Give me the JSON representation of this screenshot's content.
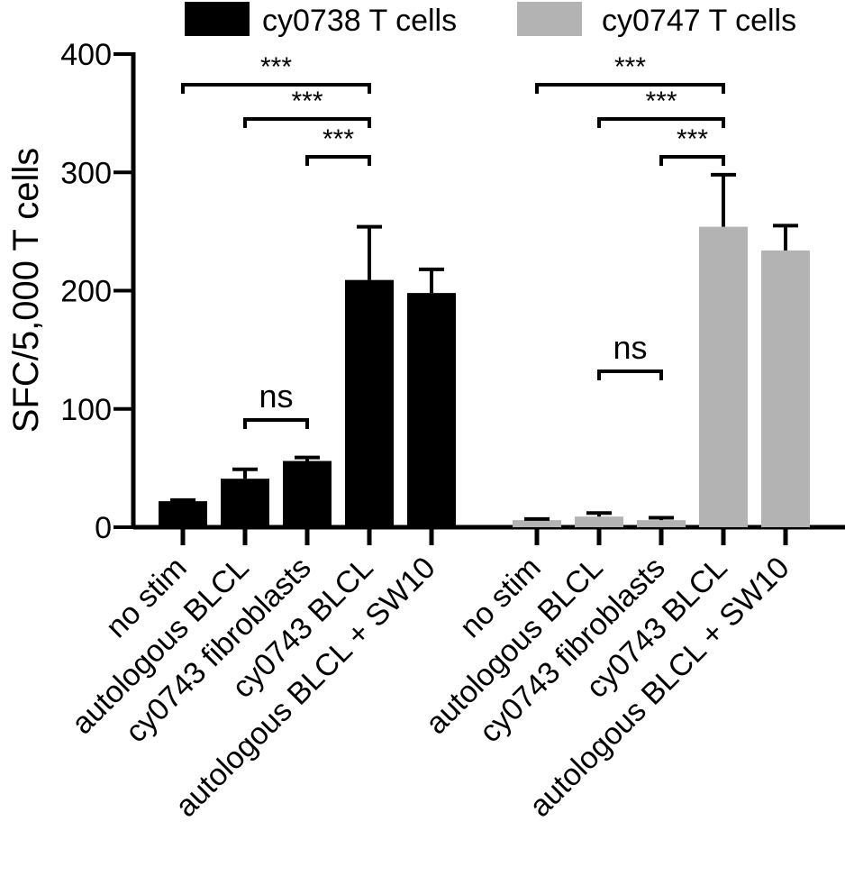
{
  "chart_data": {
    "type": "bar",
    "ylabel": "SFC/5,000 T cells",
    "xlabel": "",
    "ylim": [
      0,
      400
    ],
    "yticks": [
      0,
      100,
      200,
      300,
      400
    ],
    "categories": [
      "no stim",
      "autologous BLCL",
      "cy0743 fibroblasts",
      "cy0743 BLCL",
      "autologous BLCL + SW10"
    ],
    "series": [
      {
        "name": "cy0738 T cells",
        "color": "#000000",
        "values": [
          22,
          41,
          56,
          209,
          198
        ],
        "errors": [
          1,
          8,
          3,
          45,
          20
        ]
      },
      {
        "name": "cy0747 T cells",
        "color": "#b3b3b3",
        "values": [
          6,
          9,
          6,
          254,
          234
        ],
        "errors": [
          1,
          3,
          2,
          44,
          21
        ]
      }
    ],
    "legend_position": "top",
    "grid": false,
    "significance": [
      {
        "group": 0,
        "from": 0,
        "to": 3,
        "label": "***",
        "tier": 3
      },
      {
        "group": 0,
        "from": 1,
        "to": 3,
        "label": "***",
        "tier": 2
      },
      {
        "group": 0,
        "from": 2,
        "to": 3,
        "label": "***",
        "tier": 1
      },
      {
        "group": 0,
        "from": 1,
        "to": 2,
        "label": "ns",
        "tier": 0
      },
      {
        "group": 1,
        "from": 0,
        "to": 3,
        "label": "***",
        "tier": 3
      },
      {
        "group": 1,
        "from": 1,
        "to": 3,
        "label": "***",
        "tier": 2
      },
      {
        "group": 1,
        "from": 2,
        "to": 3,
        "label": "***",
        "tier": 1
      },
      {
        "group": 1,
        "from": 1,
        "to": 2,
        "label": "ns",
        "tier": 0
      }
    ]
  }
}
